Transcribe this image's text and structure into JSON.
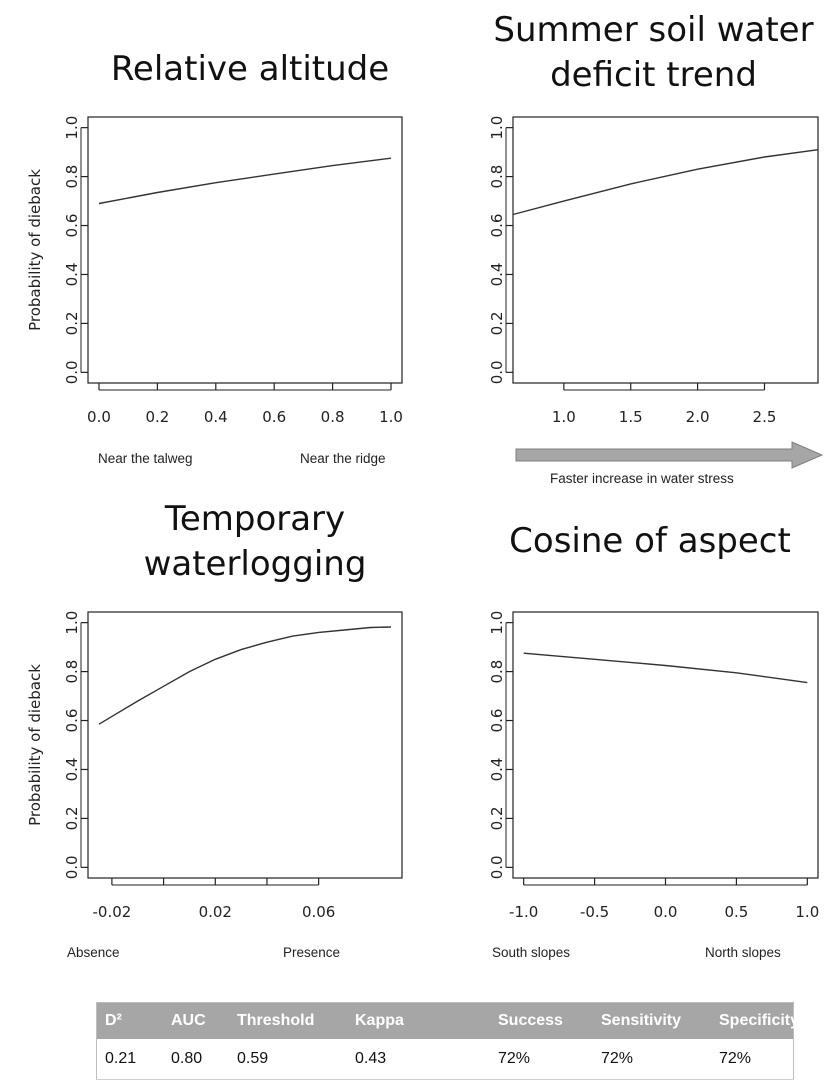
{
  "chart_data": [
    {
      "type": "line",
      "title": "Relative altitude",
      "ylabel": "Probability of dieback",
      "x_caption_left": "Near the talweg",
      "x_caption_right": "Near the ridge",
      "x": [
        0.0,
        0.2,
        0.4,
        0.6,
        0.8,
        1.0
      ],
      "y": [
        0.69,
        0.735,
        0.775,
        0.81,
        0.845,
        0.875
      ],
      "xlim": [
        0.0,
        1.0
      ],
      "ylim": [
        0.0,
        1.0
      ],
      "xticks": [
        "0.0",
        "0.2",
        "0.4",
        "0.6",
        "0.8",
        "1.0"
      ],
      "yticks": [
        "0.0",
        "0.2",
        "0.4",
        "0.6",
        "0.8",
        "1.0"
      ]
    },
    {
      "type": "line",
      "title": "Summer soil water deficit trend",
      "ylabel": "",
      "x_caption": "Faster increase in water stress",
      "x": [
        0.62,
        1.0,
        1.5,
        2.0,
        2.5,
        2.9
      ],
      "y": [
        0.645,
        0.7,
        0.77,
        0.83,
        0.88,
        0.91
      ],
      "xlim": [
        0.62,
        2.9
      ],
      "ylim": [
        0.0,
        1.0
      ],
      "xticks": [
        "1.0",
        "1.5",
        "2.0",
        "2.5"
      ],
      "yticks": [
        "0.0",
        "0.2",
        "0.4",
        "0.6",
        "0.8",
        "1.0"
      ]
    },
    {
      "type": "line",
      "title": "Temporary waterlogging",
      "ylabel": "Probability of dieback",
      "x_caption_left": "Absence",
      "x_caption_right": "Presence",
      "x": [
        -0.025,
        -0.01,
        0.0,
        0.01,
        0.02,
        0.03,
        0.04,
        0.05,
        0.06,
        0.07,
        0.08,
        0.088
      ],
      "y": [
        0.585,
        0.68,
        0.74,
        0.8,
        0.85,
        0.89,
        0.92,
        0.945,
        0.96,
        0.97,
        0.98,
        0.982
      ],
      "xlim": [
        -0.025,
        0.088
      ],
      "ylim": [
        0.0,
        1.0
      ],
      "xticks": [
        "-0.02",
        "0.02",
        "0.06"
      ],
      "yticks": [
        "0.0",
        "0.2",
        "0.4",
        "0.6",
        "0.8",
        "1.0"
      ]
    },
    {
      "type": "line",
      "title": "Cosine of aspect",
      "ylabel": "",
      "x_caption_left": "South slopes",
      "x_caption_right": "North slopes",
      "x": [
        -1.0,
        -0.5,
        0.0,
        0.5,
        1.0
      ],
      "y": [
        0.875,
        0.85,
        0.825,
        0.795,
        0.755
      ],
      "xlim": [
        -1.0,
        1.0
      ],
      "ylim": [
        0.0,
        1.0
      ],
      "xticks": [
        "-1.0",
        "-0.5",
        "0.0",
        "0.5",
        "1.0"
      ],
      "yticks": [
        "0.0",
        "0.2",
        "0.4",
        "0.6",
        "0.8",
        "1.0"
      ]
    }
  ],
  "titles": {
    "p1": "Relative altitude",
    "p2_line1": "Summer soil water",
    "p2_line2": "deficit trend",
    "p3_line1": "Temporary",
    "p3_line2": "waterlogging",
    "p4": "Cosine of aspect"
  },
  "captions": {
    "p1_left": "Near the talweg",
    "p1_right": "Near the ridge",
    "p2": "Faster increase in water stress",
    "p3_left": "Absence",
    "p3_right": "Presence",
    "p4_left": "South slopes",
    "p4_right": "North slopes"
  },
  "stats_table": {
    "headers": [
      "D²",
      "AUC",
      "Threshold",
      "Kappa",
      "Success",
      "Sensitivity",
      "Specificity"
    ],
    "values": [
      "0.21",
      "0.80",
      "0.59",
      "0.43",
      "72%",
      "72%",
      "72%"
    ]
  },
  "colors": {
    "line": "#333333",
    "arrow_fill": "#a6a6a6",
    "table_header": "#a6a6a6"
  }
}
